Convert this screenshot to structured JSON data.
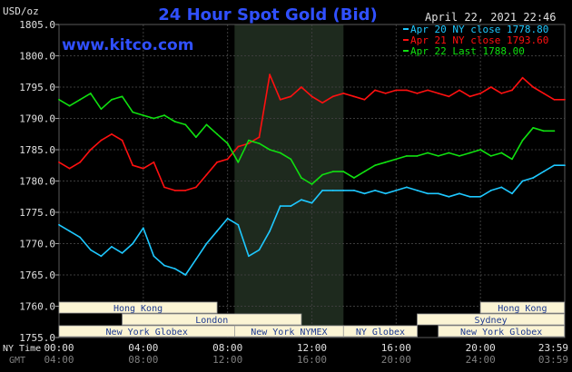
{
  "header": {
    "unit": "USD/oz",
    "title": "24 Hour Spot Gold (Bid)",
    "timestamp": "April 22, 2021 22:46",
    "website": "www.kitco.com"
  },
  "colors": {
    "background": "#000000",
    "title": "#3050ff",
    "website": "#3050ff",
    "axis_text": "#e0e0e0",
    "timezone_text": "#808080",
    "grid": "#3c3c3c",
    "session_band": "#1e2a1e",
    "apr20": "#1ec8ff",
    "apr21": "#ff1010",
    "apr22": "#10e010",
    "market_bar_fill": "#fbf4d4",
    "market_bar_text": "#1e3a90"
  },
  "timezones": {
    "ny_label": "NY Time",
    "gmt_label": "GMT"
  },
  "markets": [
    {
      "name": "Hong Kong",
      "start": "00:00",
      "end": "07:30",
      "row": 1
    },
    {
      "name": "Hong Kong",
      "start": "20:00",
      "end": "23:59",
      "row": 1
    },
    {
      "name": "London",
      "start": "03:00",
      "end": "11:30",
      "row": 2
    },
    {
      "name": "Sydney",
      "start": "17:00",
      "end": "23:59",
      "row": 2
    },
    {
      "name": "New York Globex",
      "start": "00:00",
      "end": "08:20",
      "row": 3
    },
    {
      "name": "New York NYMEX",
      "start": "08:20",
      "end": "13:30",
      "row": 3
    },
    {
      "name": "NY Globex",
      "start": "13:30",
      "end": "17:00",
      "row": 3
    },
    {
      "name": "New York Globex",
      "start": "18:00",
      "end": "23:59",
      "row": 3
    }
  ],
  "chart_data": {
    "type": "line",
    "title": "24 Hour Spot Gold (Bid)",
    "ylabel": "USD/oz",
    "xlabel": "",
    "ylim": [
      1755.0,
      1805.0
    ],
    "xlim": [
      "00:00",
      "23:59"
    ],
    "y_ticks": [
      "1805.0",
      "1800.0",
      "1795.0",
      "1790.0",
      "1785.0",
      "1780.0",
      "1775.0",
      "1770.0",
      "1765.0",
      "1760.0",
      "1755.0"
    ],
    "x_ticks_ny": [
      "00:00",
      "04:00",
      "08:00",
      "12:00",
      "16:00",
      "20:00",
      "23:59"
    ],
    "x_ticks_gmt": [
      "04:00",
      "08:00",
      "12:00",
      "16:00",
      "20:00",
      "24:00",
      "03:59"
    ],
    "grid": true,
    "highlight_band_hours": [
      8.33,
      13.5
    ],
    "legend_position": "top-right",
    "legend": [
      {
        "label": "Apr 20 NY close 1778.80",
        "color": "#1ec8ff"
      },
      {
        "label": "Apr 21 NY close 1793.60",
        "color": "#ff1010"
      },
      {
        "label": "Apr 22 Last 1788.00",
        "color": "#10e010"
      }
    ],
    "series": [
      {
        "name": "Apr 20",
        "color": "#1ec8ff",
        "x": [
          0,
          0.5,
          1,
          1.5,
          2,
          2.5,
          3,
          3.5,
          4,
          4.5,
          5,
          5.5,
          6,
          6.5,
          7,
          7.5,
          8,
          8.5,
          9,
          9.5,
          10,
          10.5,
          11,
          11.5,
          12,
          12.5,
          13,
          13.5,
          14,
          14.5,
          15,
          15.5,
          16,
          16.5,
          17,
          17.5,
          18,
          18.5,
          19,
          19.5,
          20,
          20.5,
          21,
          21.5,
          22,
          22.5,
          23,
          23.5,
          24
        ],
        "y": [
          1773.0,
          1772.0,
          1771.0,
          1769.0,
          1768.0,
          1769.5,
          1768.5,
          1770.0,
          1772.5,
          1768.0,
          1766.5,
          1766.0,
          1765.0,
          1767.5,
          1770.0,
          1772.0,
          1774.0,
          1773.0,
          1768.0,
          1769.0,
          1772.0,
          1776.0,
          1776.0,
          1777.0,
          1776.5,
          1778.5,
          1778.5,
          1778.5,
          1778.5,
          1778.0,
          1778.5,
          1778.0,
          1778.5,
          1779.0,
          1778.5,
          1778.0,
          1778.0,
          1777.5,
          1778.0,
          1777.5,
          1777.5,
          1778.5,
          1779.0,
          1778.0,
          1780.0,
          1780.5,
          1781.5,
          1782.5,
          1782.5
        ]
      },
      {
        "name": "Apr 21",
        "color": "#ff1010",
        "x": [
          0,
          0.5,
          1,
          1.5,
          2,
          2.5,
          3,
          3.5,
          4,
          4.5,
          5,
          5.5,
          6,
          6.5,
          7,
          7.5,
          8,
          8.5,
          9,
          9.5,
          10,
          10.5,
          11,
          11.5,
          12,
          12.5,
          13,
          13.5,
          14,
          14.5,
          15,
          15.5,
          16,
          16.5,
          17,
          17.5,
          18,
          18.5,
          19,
          19.5,
          20,
          20.5,
          21,
          21.5,
          22,
          22.5,
          23,
          23.5,
          24
        ],
        "y": [
          1783.0,
          1782.0,
          1783.0,
          1785.0,
          1786.5,
          1787.5,
          1786.5,
          1782.5,
          1782.0,
          1783.0,
          1779.0,
          1778.5,
          1778.5,
          1779.0,
          1781.0,
          1783.0,
          1783.5,
          1785.5,
          1786.0,
          1787.0,
          1797.0,
          1793.0,
          1793.5,
          1795.0,
          1793.5,
          1792.5,
          1793.5,
          1794.0,
          1793.5,
          1793.0,
          1794.5,
          1794.0,
          1794.5,
          1794.5,
          1794.0,
          1794.5,
          1794.0,
          1793.5,
          1794.5,
          1793.5,
          1794.0,
          1795.0,
          1794.0,
          1794.5,
          1796.5,
          1795.0,
          1794.0,
          1793.0,
          1793.0
        ]
      },
      {
        "name": "Apr 22",
        "color": "#10e010",
        "x": [
          0,
          0.5,
          1,
          1.5,
          2,
          2.5,
          3,
          3.5,
          4,
          4.5,
          5,
          5.5,
          6,
          6.5,
          7,
          7.5,
          8,
          8.5,
          9,
          9.5,
          10,
          10.5,
          11,
          11.5,
          12,
          12.5,
          13,
          13.5,
          14,
          14.5,
          15,
          15.5,
          16,
          16.5,
          17,
          17.5,
          18,
          18.5,
          19,
          19.5,
          20,
          20.5,
          21,
          21.5,
          22,
          22.5,
          23,
          23.5
        ],
        "y": [
          1793.0,
          1792.0,
          1793.0,
          1794.0,
          1791.5,
          1793.0,
          1793.5,
          1791.0,
          1790.5,
          1790.0,
          1790.5,
          1789.5,
          1789.0,
          1787.0,
          1789.0,
          1787.5,
          1786.0,
          1783.0,
          1786.5,
          1786.0,
          1785.0,
          1784.5,
          1783.5,
          1780.5,
          1779.5,
          1781.0,
          1781.5,
          1781.5,
          1780.5,
          1781.5,
          1782.5,
          1783.0,
          1783.5,
          1784.0,
          1784.0,
          1784.5,
          1784.0,
          1784.5,
          1784.0,
          1784.5,
          1785.0,
          1784.0,
          1784.5,
          1783.5,
          1786.5,
          1788.5,
          1788.0,
          1788.0
        ]
      }
    ]
  }
}
